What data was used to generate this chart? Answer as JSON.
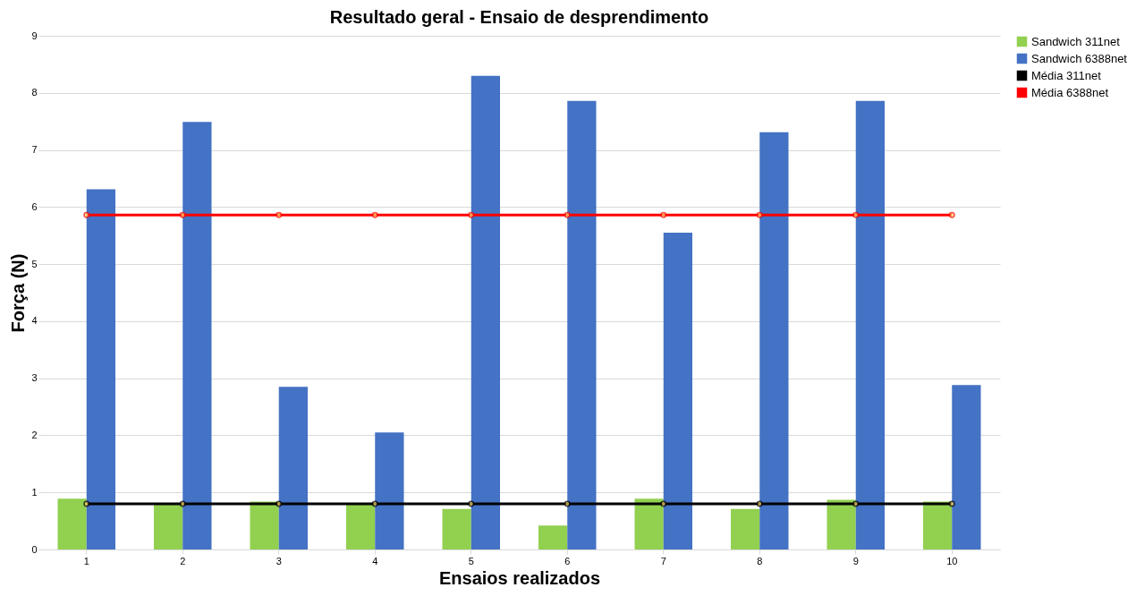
{
  "chart_data": {
    "type": "bar",
    "title": "Resultado geral - Ensaio de desprendimento",
    "xlabel": "Ensaios realizados",
    "ylabel": "Força (N)",
    "categories": [
      "1",
      "2",
      "3",
      "4",
      "5",
      "6",
      "7",
      "8",
      "9",
      "10"
    ],
    "series": [
      {
        "name": "Sandwich 311net",
        "color": "#92d050",
        "values": [
          0.89,
          0.79,
          0.84,
          0.79,
          0.71,
          0.42,
          0.89,
          0.71,
          0.87,
          0.84
        ]
      },
      {
        "name": "Sandwich 6388net",
        "color": "#4472c4",
        "values": [
          6.31,
          7.49,
          2.85,
          2.05,
          8.3,
          7.86,
          5.55,
          7.31,
          7.86,
          2.88
        ]
      },
      {
        "name": "Média 311net",
        "color": "#000000",
        "type": "line",
        "marker": "circle",
        "values": [
          0.8,
          0.8,
          0.8,
          0.8,
          0.8,
          0.8,
          0.8,
          0.8,
          0.8,
          0.8
        ]
      },
      {
        "name": "Média 6388net",
        "color": "#ff0000",
        "type": "line",
        "marker": "circle",
        "values": [
          5.86,
          5.86,
          5.86,
          5.86,
          5.86,
          5.86,
          5.86,
          5.86,
          5.86,
          5.86
        ]
      }
    ],
    "ylim": [
      0,
      9
    ],
    "yticks": [
      0,
      1,
      2,
      3,
      4,
      5,
      6,
      7,
      8,
      9
    ],
    "grid": "y",
    "legend": "right"
  }
}
